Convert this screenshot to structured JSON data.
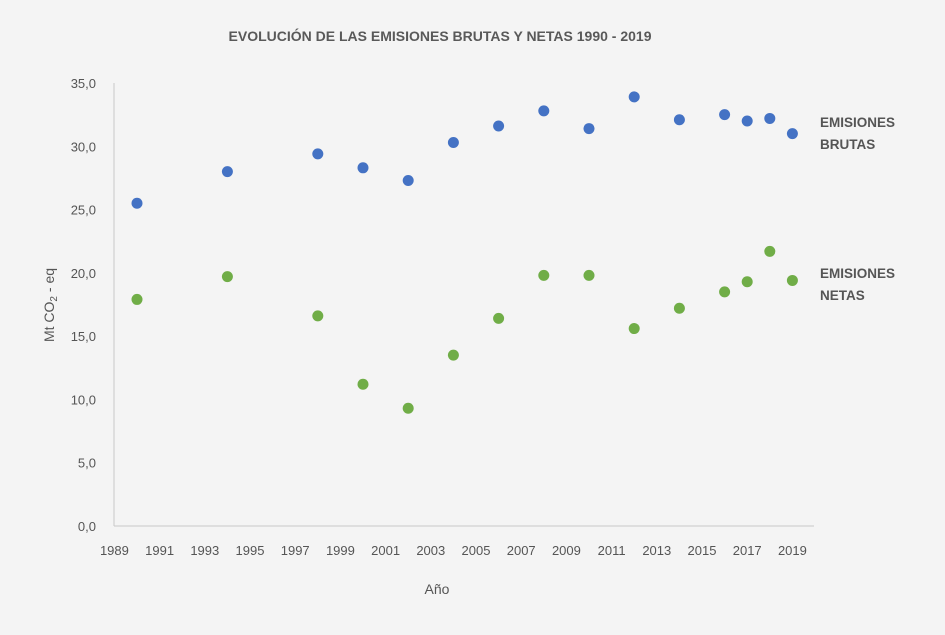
{
  "chart_data": {
    "type": "scatter",
    "title": "EVOLUCIÓN DE LAS EMISIONES BRUTAS Y NETAS 1990 - 2019",
    "xlabel": "Año",
    "ylabel_main": "Mt CO",
    "ylabel_sub": "2",
    "ylabel_tail": " - eq",
    "xlim": [
      1989,
      2020
    ],
    "ylim": [
      0,
      35
    ],
    "x_ticks": [
      "1989",
      "1991",
      "1993",
      "1995",
      "1997",
      "1999",
      "2001",
      "2003",
      "2005",
      "2007",
      "2009",
      "2011",
      "2013",
      "2015",
      "2017",
      "2019"
    ],
    "x_tick_values": [
      1989,
      1991,
      1993,
      1995,
      1997,
      1999,
      2001,
      2003,
      2005,
      2007,
      2009,
      2011,
      2013,
      2015,
      2017,
      2019
    ],
    "y_ticks": [
      "0,0",
      "5,0",
      "10,0",
      "15,0",
      "20,0",
      "25,0",
      "30,0",
      "35,0"
    ],
    "y_tick_values": [
      0,
      5,
      10,
      15,
      20,
      25,
      30,
      35
    ],
    "grid": false,
    "series": [
      {
        "name_line1": "EMISIONES",
        "name_line2": "BRUTAS",
        "color": "#4472c4",
        "points": [
          {
            "x": 1990,
            "y": 25.5
          },
          {
            "x": 1994,
            "y": 28.0
          },
          {
            "x": 1998,
            "y": 29.4
          },
          {
            "x": 2000,
            "y": 28.3
          },
          {
            "x": 2002,
            "y": 27.3
          },
          {
            "x": 2004,
            "y": 30.3
          },
          {
            "x": 2006,
            "y": 31.6
          },
          {
            "x": 2008,
            "y": 32.8
          },
          {
            "x": 2010,
            "y": 31.4
          },
          {
            "x": 2012,
            "y": 33.9
          },
          {
            "x": 2014,
            "y": 32.1
          },
          {
            "x": 2016,
            "y": 32.5
          },
          {
            "x": 2017,
            "y": 32.0
          },
          {
            "x": 2018,
            "y": 32.2
          },
          {
            "x": 2019,
            "y": 31.0
          }
        ]
      },
      {
        "name_line1": "EMISIONES",
        "name_line2": "NETAS",
        "color": "#70ad47",
        "points": [
          {
            "x": 1990,
            "y": 17.9
          },
          {
            "x": 1994,
            "y": 19.7
          },
          {
            "x": 1998,
            "y": 16.6
          },
          {
            "x": 2000,
            "y": 11.2
          },
          {
            "x": 2002,
            "y": 9.3
          },
          {
            "x": 2004,
            "y": 13.5
          },
          {
            "x": 2006,
            "y": 16.4
          },
          {
            "x": 2008,
            "y": 19.8
          },
          {
            "x": 2010,
            "y": 19.8
          },
          {
            "x": 2012,
            "y": 15.6
          },
          {
            "x": 2014,
            "y": 17.2
          },
          {
            "x": 2016,
            "y": 18.5
          },
          {
            "x": 2017,
            "y": 19.3
          },
          {
            "x": 2018,
            "y": 21.7
          },
          {
            "x": 2019,
            "y": 19.4
          }
        ]
      }
    ]
  }
}
